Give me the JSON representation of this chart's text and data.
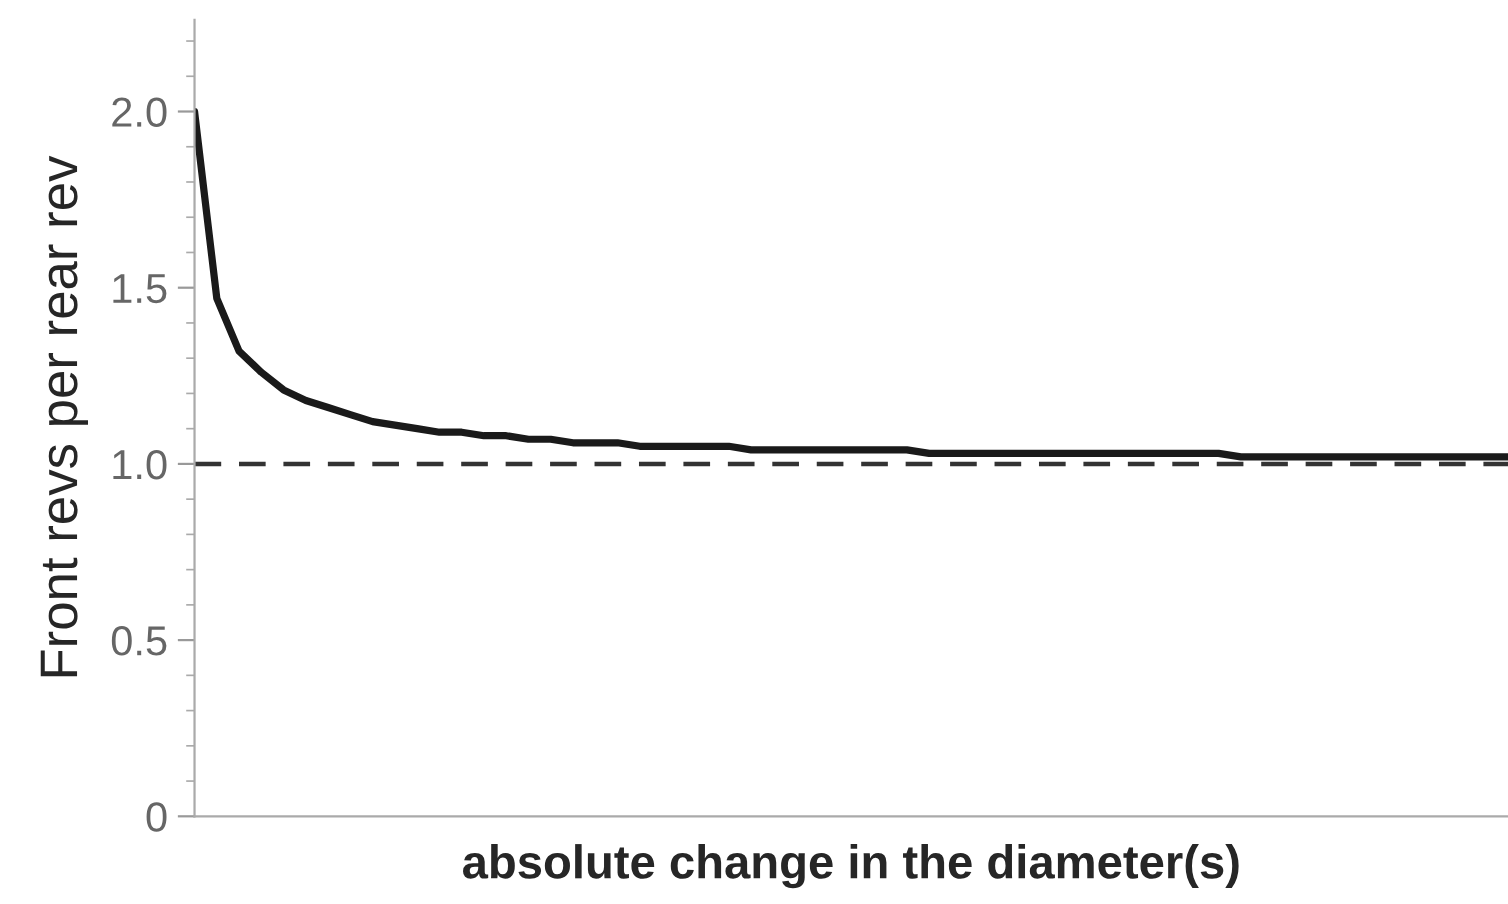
{
  "chart_data": {
    "type": "line",
    "xlabel": "absolute change in the diameter(s)",
    "ylabel": "Front revs per rear rev",
    "categories": [
      null,
      null,
      null,
      null,
      null,
      null,
      null,
      null,
      null,
      null,
      null,
      null,
      null,
      null,
      null,
      null,
      null,
      null,
      null,
      null,
      null,
      null,
      null,
      null,
      null,
      null,
      null,
      null,
      null,
      null,
      null,
      null,
      null,
      null,
      null,
      null,
      null,
      null,
      null,
      null,
      null,
      null,
      null,
      null,
      null,
      null,
      null,
      null,
      null,
      null,
      null,
      null,
      null,
      null,
      null,
      null,
      null,
      null,
      null,
      null
    ],
    "series": [
      {
        "color": "#1a1a1a",
        "values": [
          2.0,
          1.47,
          1.32,
          1.26,
          1.21,
          1.18,
          1.16,
          1.14,
          1.12,
          1.11,
          1.1,
          1.09,
          1.09,
          1.08,
          1.08,
          1.07,
          1.07,
          1.06,
          1.06,
          1.06,
          1.05,
          1.05,
          1.05,
          1.05,
          1.05,
          1.04,
          1.04,
          1.04,
          1.04,
          1.04,
          1.04,
          1.04,
          1.04,
          1.03,
          1.03,
          1.03,
          1.03,
          1.03,
          1.03,
          1.03,
          1.03,
          1.03,
          1.03,
          1.03,
          1.03,
          1.03,
          1.03,
          1.02,
          1.02,
          1.02,
          1.02,
          1.02,
          1.02,
          1.02,
          1.02,
          1.02,
          1.02,
          1.02,
          1.02,
          1.02
        ]
      }
    ],
    "ylim": [
      0,
      2.26
    ],
    "yticks": [
      {
        "value": 0,
        "label": "0"
      },
      0.5,
      {
        "value": 1,
        "label": "1.0"
      },
      1.5,
      {
        "value": 2,
        "label": "2.0"
      }
    ],
    "ref_lines": [
      {
        "axis": "y",
        "value": 1.0,
        "color": "#333333",
        "line_style": "dashed"
      }
    ],
    "tick_labels": "y",
    "grid": false,
    "marker": "none",
    "line_style": "solid"
  }
}
